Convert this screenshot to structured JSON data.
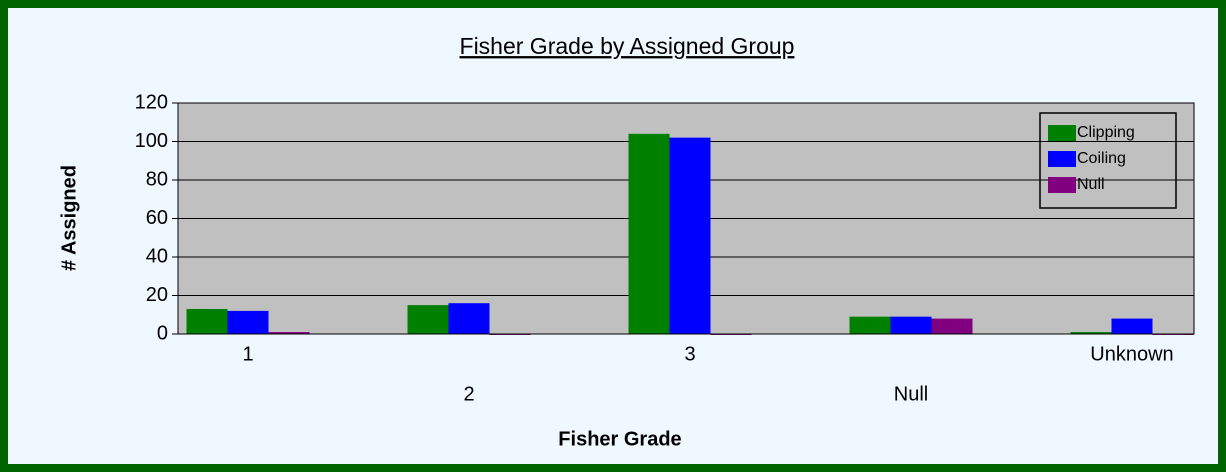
{
  "chart_data": {
    "type": "bar",
    "title": "Fisher Grade by Assigned Group",
    "x_label": "Fisher Grade",
    "y_label": "# Assigned",
    "categories": [
      "1",
      "2",
      "3",
      "Null",
      "Unknown"
    ],
    "series": [
      {
        "name": "Clipping",
        "color": "#008000",
        "values": [
          13,
          15,
          104,
          9,
          1
        ]
      },
      {
        "name": "Coiling",
        "color": "#0000ff",
        "values": [
          12,
          16,
          102,
          9,
          8
        ]
      },
      {
        "name": "Null",
        "color": "#800080",
        "values": [
          1,
          0,
          0,
          8,
          0
        ]
      }
    ],
    "ylim": [
      0,
      120
    ],
    "yticks": [
      0,
      20,
      40,
      60,
      80,
      100,
      120
    ],
    "grid": true,
    "legend": "upper right"
  }
}
